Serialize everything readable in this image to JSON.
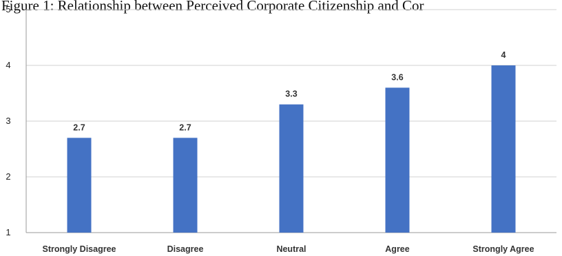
{
  "caption": "Figure 1: Relationship between Perceived Corporate Citizenship and Cor",
  "chart_data": {
    "type": "bar",
    "title": "",
    "xlabel": "",
    "ylabel": "",
    "categories": [
      "Strongly Disagree",
      "Disagree",
      "Neutral",
      "Agree",
      "Strongly Agree"
    ],
    "values": [
      2.7,
      2.7,
      3.3,
      3.6,
      4
    ],
    "data_labels": [
      "2.7",
      "2.7",
      "3.3",
      "3.6",
      "4"
    ],
    "y_ticks": [
      "1",
      "2",
      "3",
      "4",
      "5"
    ],
    "ylim": [
      1,
      5
    ],
    "grid": true,
    "legend": "none",
    "colors": {
      "bar": "#4472C4",
      "grid": "#d0d0d0",
      "axis": "#9a9a9a"
    }
  }
}
